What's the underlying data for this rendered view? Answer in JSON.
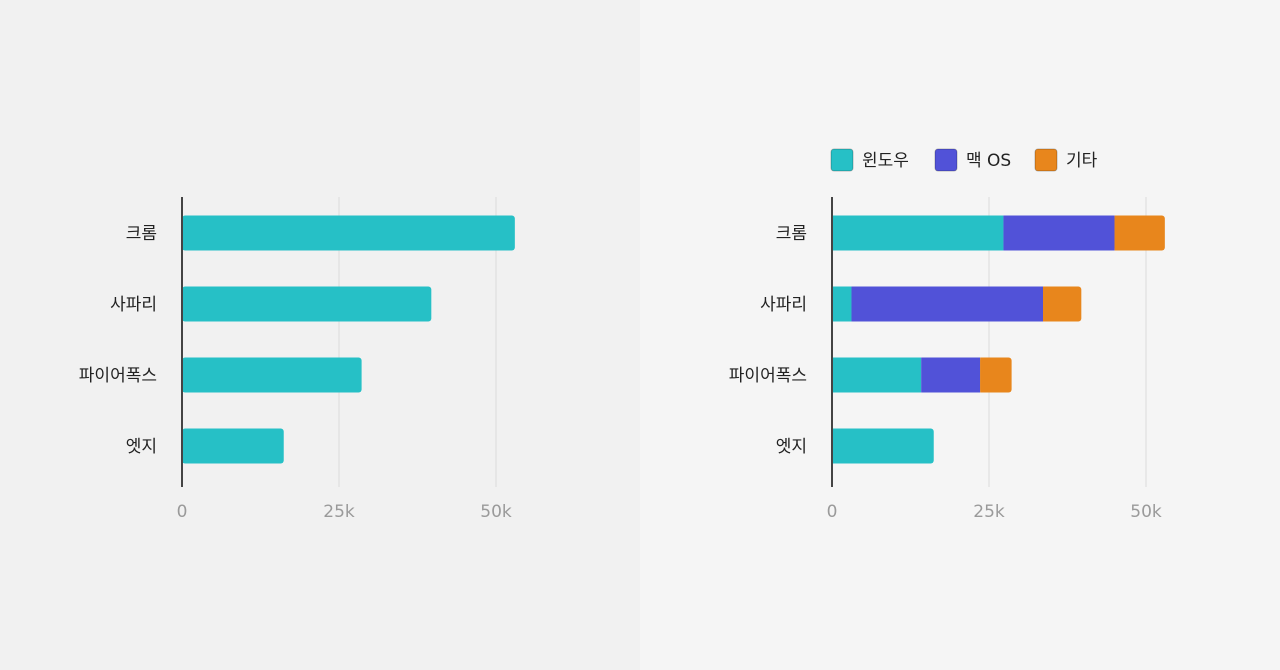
{
  "colors": {
    "windows": "#26c0c6",
    "macos": "#5152d8",
    "other": "#e8861c"
  },
  "chart_data": [
    {
      "type": "bar",
      "orientation": "horizontal",
      "categories": [
        "크롬",
        "사파리",
        "파이어폭스",
        "엣지"
      ],
      "values": [
        53000,
        39700,
        28600,
        16200
      ],
      "xlim": [
        0,
        60000
      ],
      "xticks": [
        0,
        25000,
        50000
      ],
      "xtick_labels": [
        "0",
        "25k",
        "50k"
      ],
      "grid": true,
      "legend": null
    },
    {
      "type": "bar",
      "orientation": "horizontal",
      "stacked": true,
      "categories": [
        "크롬",
        "사파리",
        "파이어폭스",
        "엣지"
      ],
      "series": [
        {
          "name": "윈도우",
          "color_key": "windows",
          "values": [
            27300,
            3100,
            14200,
            16200
          ]
        },
        {
          "name": "맥 OS",
          "color_key": "macos",
          "values": [
            17700,
            30500,
            9400,
            0
          ]
        },
        {
          "name": "기타",
          "color_key": "other",
          "values": [
            8000,
            6100,
            5000,
            0
          ]
        }
      ],
      "xlim": [
        0,
        60000
      ],
      "xticks": [
        0,
        25000,
        50000
      ],
      "xtick_labels": [
        "0",
        "25k",
        "50k"
      ],
      "grid": true,
      "legend": "top"
    }
  ]
}
